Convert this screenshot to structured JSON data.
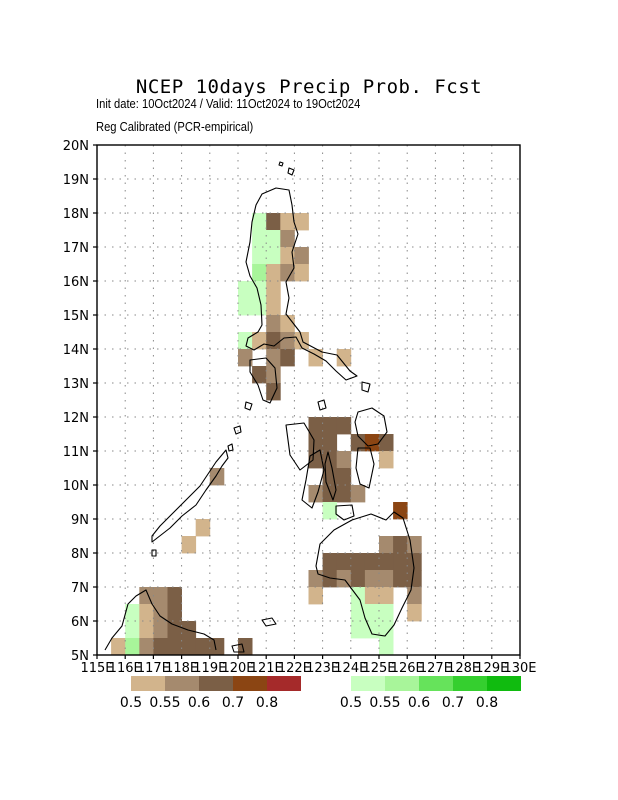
{
  "title": "NCEP 10days Precip Prob. Fcst",
  "subtitle_1": "Init date: 10Oct2024 / Valid: 11Oct2024 to 19Oct2024",
  "subtitle_2": "Reg Calibrated (PCR-empirical)",
  "map": {
    "lat_ticks": [
      "5N",
      "6N",
      "7N",
      "8N",
      "9N",
      "10N",
      "11N",
      "12N",
      "13N",
      "14N",
      "15N",
      "16N",
      "17N",
      "18N",
      "19N",
      "20N"
    ],
    "lon_ticks": [
      "115E",
      "116E",
      "117E",
      "118E",
      "119E",
      "120E",
      "121E",
      "122E",
      "123E",
      "124E",
      "125E",
      "126E",
      "127E",
      "128E",
      "129E",
      "130E"
    ],
    "grid": "dotted",
    "cell_deg": 0.5
  },
  "legend": {
    "dry": {
      "labels": [
        "0.5",
        "0.55",
        "0.6",
        "0.7",
        "0.8"
      ],
      "colors": [
        "#d2b48c",
        "#a58a6e",
        "#7b5f46",
        "#8b4513",
        "#a52a2a"
      ]
    },
    "wet": {
      "labels": [
        "0.5",
        "0.55",
        "0.6",
        "0.7",
        "0.8"
      ],
      "colors": [
        "#c8ffc0",
        "#a8f59a",
        "#66e35b",
        "#35cf2f",
        "#10bb0f"
      ]
    }
  },
  "chart_data": {
    "type": "heatmap",
    "title": "NCEP 10days Precip Prob. Fcst",
    "x_range_deg_e": [
      115,
      130
    ],
    "y_range_deg_n": [
      5,
      20
    ],
    "categories": [
      "dry 0.5",
      "dry 0.55",
      "dry 0.6",
      "dry 0.7",
      "wet 0.5",
      "wet 0.55"
    ],
    "cells": [
      {
        "lon": 120.75,
        "lat": 17.75,
        "cat": "wet 0.5"
      },
      {
        "lon": 121.25,
        "lat": 17.75,
        "cat": "dry 0.6"
      },
      {
        "lon": 121.75,
        "lat": 17.75,
        "cat": "dry 0.5"
      },
      {
        "lon": 122.25,
        "lat": 17.75,
        "cat": "dry 0.5"
      },
      {
        "lon": 120.75,
        "lat": 17.25,
        "cat": "wet 0.5"
      },
      {
        "lon": 121.25,
        "lat": 17.25,
        "cat": "wet 0.5"
      },
      {
        "lon": 121.75,
        "lat": 17.25,
        "cat": "dry 0.55"
      },
      {
        "lon": 120.75,
        "lat": 16.75,
        "cat": "wet 0.5"
      },
      {
        "lon": 121.25,
        "lat": 16.75,
        "cat": "wet 0.5"
      },
      {
        "lon": 121.75,
        "lat": 16.75,
        "cat": "dry 0.5"
      },
      {
        "lon": 122.25,
        "lat": 16.75,
        "cat": "dry 0.55"
      },
      {
        "lon": 120.75,
        "lat": 16.25,
        "cat": "wet 0.55"
      },
      {
        "lon": 121.25,
        "lat": 16.25,
        "cat": "dry 0.5"
      },
      {
        "lon": 121.75,
        "lat": 16.25,
        "cat": "dry 0.55"
      },
      {
        "lon": 122.25,
        "lat": 16.25,
        "cat": "dry 0.5"
      },
      {
        "lon": 120.25,
        "lat": 15.75,
        "cat": "wet 0.5"
      },
      {
        "lon": 120.75,
        "lat": 15.75,
        "cat": "wet 0.5"
      },
      {
        "lon": 121.25,
        "lat": 15.75,
        "cat": "dry 0.5"
      },
      {
        "lon": 120.25,
        "lat": 15.25,
        "cat": "wet 0.5"
      },
      {
        "lon": 120.75,
        "lat": 15.25,
        "cat": "wet 0.5"
      },
      {
        "lon": 121.25,
        "lat": 15.25,
        "cat": "dry 0.5"
      },
      {
        "lon": 121.25,
        "lat": 14.75,
        "cat": "dry 0.55"
      },
      {
        "lon": 121.75,
        "lat": 14.75,
        "cat": "dry 0.5"
      },
      {
        "lon": 120.25,
        "lat": 14.25,
        "cat": "wet 0.5"
      },
      {
        "lon": 120.75,
        "lat": 14.25,
        "cat": "dry 0.5"
      },
      {
        "lon": 121.25,
        "lat": 14.25,
        "cat": "dry 0.6"
      },
      {
        "lon": 121.75,
        "lat": 14.25,
        "cat": "dry 0.55"
      },
      {
        "lon": 122.25,
        "lat": 14.25,
        "cat": "dry 0.5"
      },
      {
        "lon": 120.25,
        "lat": 13.75,
        "cat": "dry 0.55"
      },
      {
        "lon": 121.25,
        "lat": 13.75,
        "cat": "dry 0.55"
      },
      {
        "lon": 121.75,
        "lat": 13.75,
        "cat": "dry 0.6"
      },
      {
        "lon": 122.75,
        "lat": 13.75,
        "cat": "dry 0.5"
      },
      {
        "lon": 123.75,
        "lat": 13.75,
        "cat": "dry 0.5"
      },
      {
        "lon": 120.75,
        "lat": 13.25,
        "cat": "dry 0.6"
      },
      {
        "lon": 121.25,
        "lat": 13.25,
        "cat": "dry 0.55"
      },
      {
        "lon": 121.25,
        "lat": 12.75,
        "cat": "dry 0.6"
      },
      {
        "lon": 122.75,
        "lat": 11.75,
        "cat": "dry 0.6"
      },
      {
        "lon": 123.25,
        "lat": 11.75,
        "cat": "dry 0.6"
      },
      {
        "lon": 123.75,
        "lat": 11.75,
        "cat": "dry 0.6"
      },
      {
        "lon": 122.75,
        "lat": 11.25,
        "cat": "dry 0.6"
      },
      {
        "lon": 123.25,
        "lat": 11.25,
        "cat": "dry 0.6"
      },
      {
        "lon": 124.25,
        "lat": 11.25,
        "cat": "dry 0.6"
      },
      {
        "lon": 124.75,
        "lat": 11.25,
        "cat": "dry 0.7"
      },
      {
        "lon": 125.25,
        "lat": 11.25,
        "cat": "dry 0.6"
      },
      {
        "lon": 122.75,
        "lat": 10.75,
        "cat": "dry 0.6"
      },
      {
        "lon": 123.25,
        "lat": 10.75,
        "cat": "dry 0.6"
      },
      {
        "lon": 123.75,
        "lat": 10.75,
        "cat": "dry 0.55"
      },
      {
        "lon": 125.25,
        "lat": 10.75,
        "cat": "dry 0.5"
      },
      {
        "lon": 123.25,
        "lat": 10.25,
        "cat": "dry 0.6"
      },
      {
        "lon": 123.75,
        "lat": 10.25,
        "cat": "dry 0.6"
      },
      {
        "lon": 122.75,
        "lat": 9.75,
        "cat": "dry 0.55"
      },
      {
        "lon": 123.25,
        "lat": 9.75,
        "cat": "dry 0.6"
      },
      {
        "lon": 123.75,
        "lat": 9.75,
        "cat": "dry 0.6"
      },
      {
        "lon": 124.25,
        "lat": 9.75,
        "cat": "dry 0.55"
      },
      {
        "lon": 123.25,
        "lat": 9.25,
        "cat": "wet 0.5"
      },
      {
        "lon": 125.75,
        "lat": 9.25,
        "cat": "dry 0.7"
      },
      {
        "lon": 125.25,
        "lat": 8.25,
        "cat": "dry 0.55"
      },
      {
        "lon": 125.75,
        "lat": 8.25,
        "cat": "dry 0.6"
      },
      {
        "lon": 126.25,
        "lat": 8.25,
        "cat": "dry 0.55"
      },
      {
        "lon": 123.25,
        "lat": 7.75,
        "cat": "dry 0.6"
      },
      {
        "lon": 123.75,
        "lat": 7.75,
        "cat": "dry 0.6"
      },
      {
        "lon": 124.25,
        "lat": 7.75,
        "cat": "dry 0.6"
      },
      {
        "lon": 124.75,
        "lat": 7.75,
        "cat": "dry 0.6"
      },
      {
        "lon": 125.25,
        "lat": 7.75,
        "cat": "dry 0.6"
      },
      {
        "lon": 125.75,
        "lat": 7.75,
        "cat": "dry 0.6"
      },
      {
        "lon": 126.25,
        "lat": 7.75,
        "cat": "dry 0.6"
      },
      {
        "lon": 122.75,
        "lat": 7.25,
        "cat": "dry 0.55"
      },
      {
        "lon": 123.25,
        "lat": 7.25,
        "cat": "dry 0.6"
      },
      {
        "lon": 123.75,
        "lat": 7.25,
        "cat": "dry 0.55"
      },
      {
        "lon": 124.25,
        "lat": 7.25,
        "cat": "dry 0.6"
      },
      {
        "lon": 124.75,
        "lat": 7.25,
        "cat": "dry 0.55"
      },
      {
        "lon": 125.25,
        "lat": 7.25,
        "cat": "dry 0.55"
      },
      {
        "lon": 125.75,
        "lat": 7.25,
        "cat": "dry 0.6"
      },
      {
        "lon": 126.25,
        "lat": 7.25,
        "cat": "dry 0.6"
      },
      {
        "lon": 122.75,
        "lat": 6.75,
        "cat": "dry 0.5"
      },
      {
        "lon": 124.25,
        "lat": 6.75,
        "cat": "wet 0.5"
      },
      {
        "lon": 124.75,
        "lat": 6.75,
        "cat": "dry 0.5"
      },
      {
        "lon": 125.25,
        "lat": 6.75,
        "cat": "dry 0.5"
      },
      {
        "lon": 126.25,
        "lat": 6.75,
        "cat": "dry 0.55"
      },
      {
        "lon": 124.25,
        "lat": 6.25,
        "cat": "wet 0.5"
      },
      {
        "lon": 124.75,
        "lat": 6.25,
        "cat": "wet 0.5"
      },
      {
        "lon": 125.25,
        "lat": 6.25,
        "cat": "wet 0.5"
      },
      {
        "lon": 126.25,
        "lat": 6.25,
        "cat": "dry 0.5"
      },
      {
        "lon": 124.25,
        "lat": 5.75,
        "cat": "wet 0.5"
      },
      {
        "lon": 124.75,
        "lat": 5.75,
        "cat": "wet 0.5"
      },
      {
        "lon": 125.25,
        "lat": 5.75,
        "cat": "wet 0.5"
      },
      {
        "lon": 125.25,
        "lat": 5.25,
        "cat": "wet 0.5"
      },
      {
        "lon": 119.25,
        "lat": 10.25,
        "cat": "dry 0.55"
      },
      {
        "lon": 118.75,
        "lat": 8.75,
        "cat": "dry 0.5"
      },
      {
        "lon": 118.25,
        "lat": 8.25,
        "cat": "dry 0.5"
      },
      {
        "lon": 116.75,
        "lat": 6.75,
        "cat": "dry 0.55"
      },
      {
        "lon": 117.25,
        "lat": 6.75,
        "cat": "dry 0.55"
      },
      {
        "lon": 117.75,
        "lat": 6.75,
        "cat": "dry 0.6"
      },
      {
        "lon": 116.25,
        "lat": 6.25,
        "cat": "wet 0.5"
      },
      {
        "lon": 116.75,
        "lat": 6.25,
        "cat": "dry 0.5"
      },
      {
        "lon": 117.25,
        "lat": 6.25,
        "cat": "dry 0.55"
      },
      {
        "lon": 117.75,
        "lat": 6.25,
        "cat": "dry 0.6"
      },
      {
        "lon": 116.25,
        "lat": 5.75,
        "cat": "wet 0.5"
      },
      {
        "lon": 116.75,
        "lat": 5.75,
        "cat": "dry 0.5"
      },
      {
        "lon": 117.25,
        "lat": 5.75,
        "cat": "dry 0.55"
      },
      {
        "lon": 117.75,
        "lat": 5.75,
        "cat": "dry 0.6"
      },
      {
        "lon": 118.25,
        "lat": 5.75,
        "cat": "dry 0.6"
      },
      {
        "lon": 115.75,
        "lat": 5.25,
        "cat": "dry 0.5"
      },
      {
        "lon": 116.25,
        "lat": 5.25,
        "cat": "wet 0.55"
      },
      {
        "lon": 116.75,
        "lat": 5.25,
        "cat": "dry 0.55"
      },
      {
        "lon": 117.25,
        "lat": 5.25,
        "cat": "dry 0.6"
      },
      {
        "lon": 117.75,
        "lat": 5.25,
        "cat": "dry 0.6"
      },
      {
        "lon": 118.25,
        "lat": 5.25,
        "cat": "dry 0.6"
      },
      {
        "lon": 118.75,
        "lat": 5.25,
        "cat": "dry 0.6"
      },
      {
        "lon": 119.25,
        "lat": 5.25,
        "cat": "dry 0.6"
      },
      {
        "lon": 120.25,
        "lat": 5.25,
        "cat": "dry 0.6"
      }
    ]
  }
}
